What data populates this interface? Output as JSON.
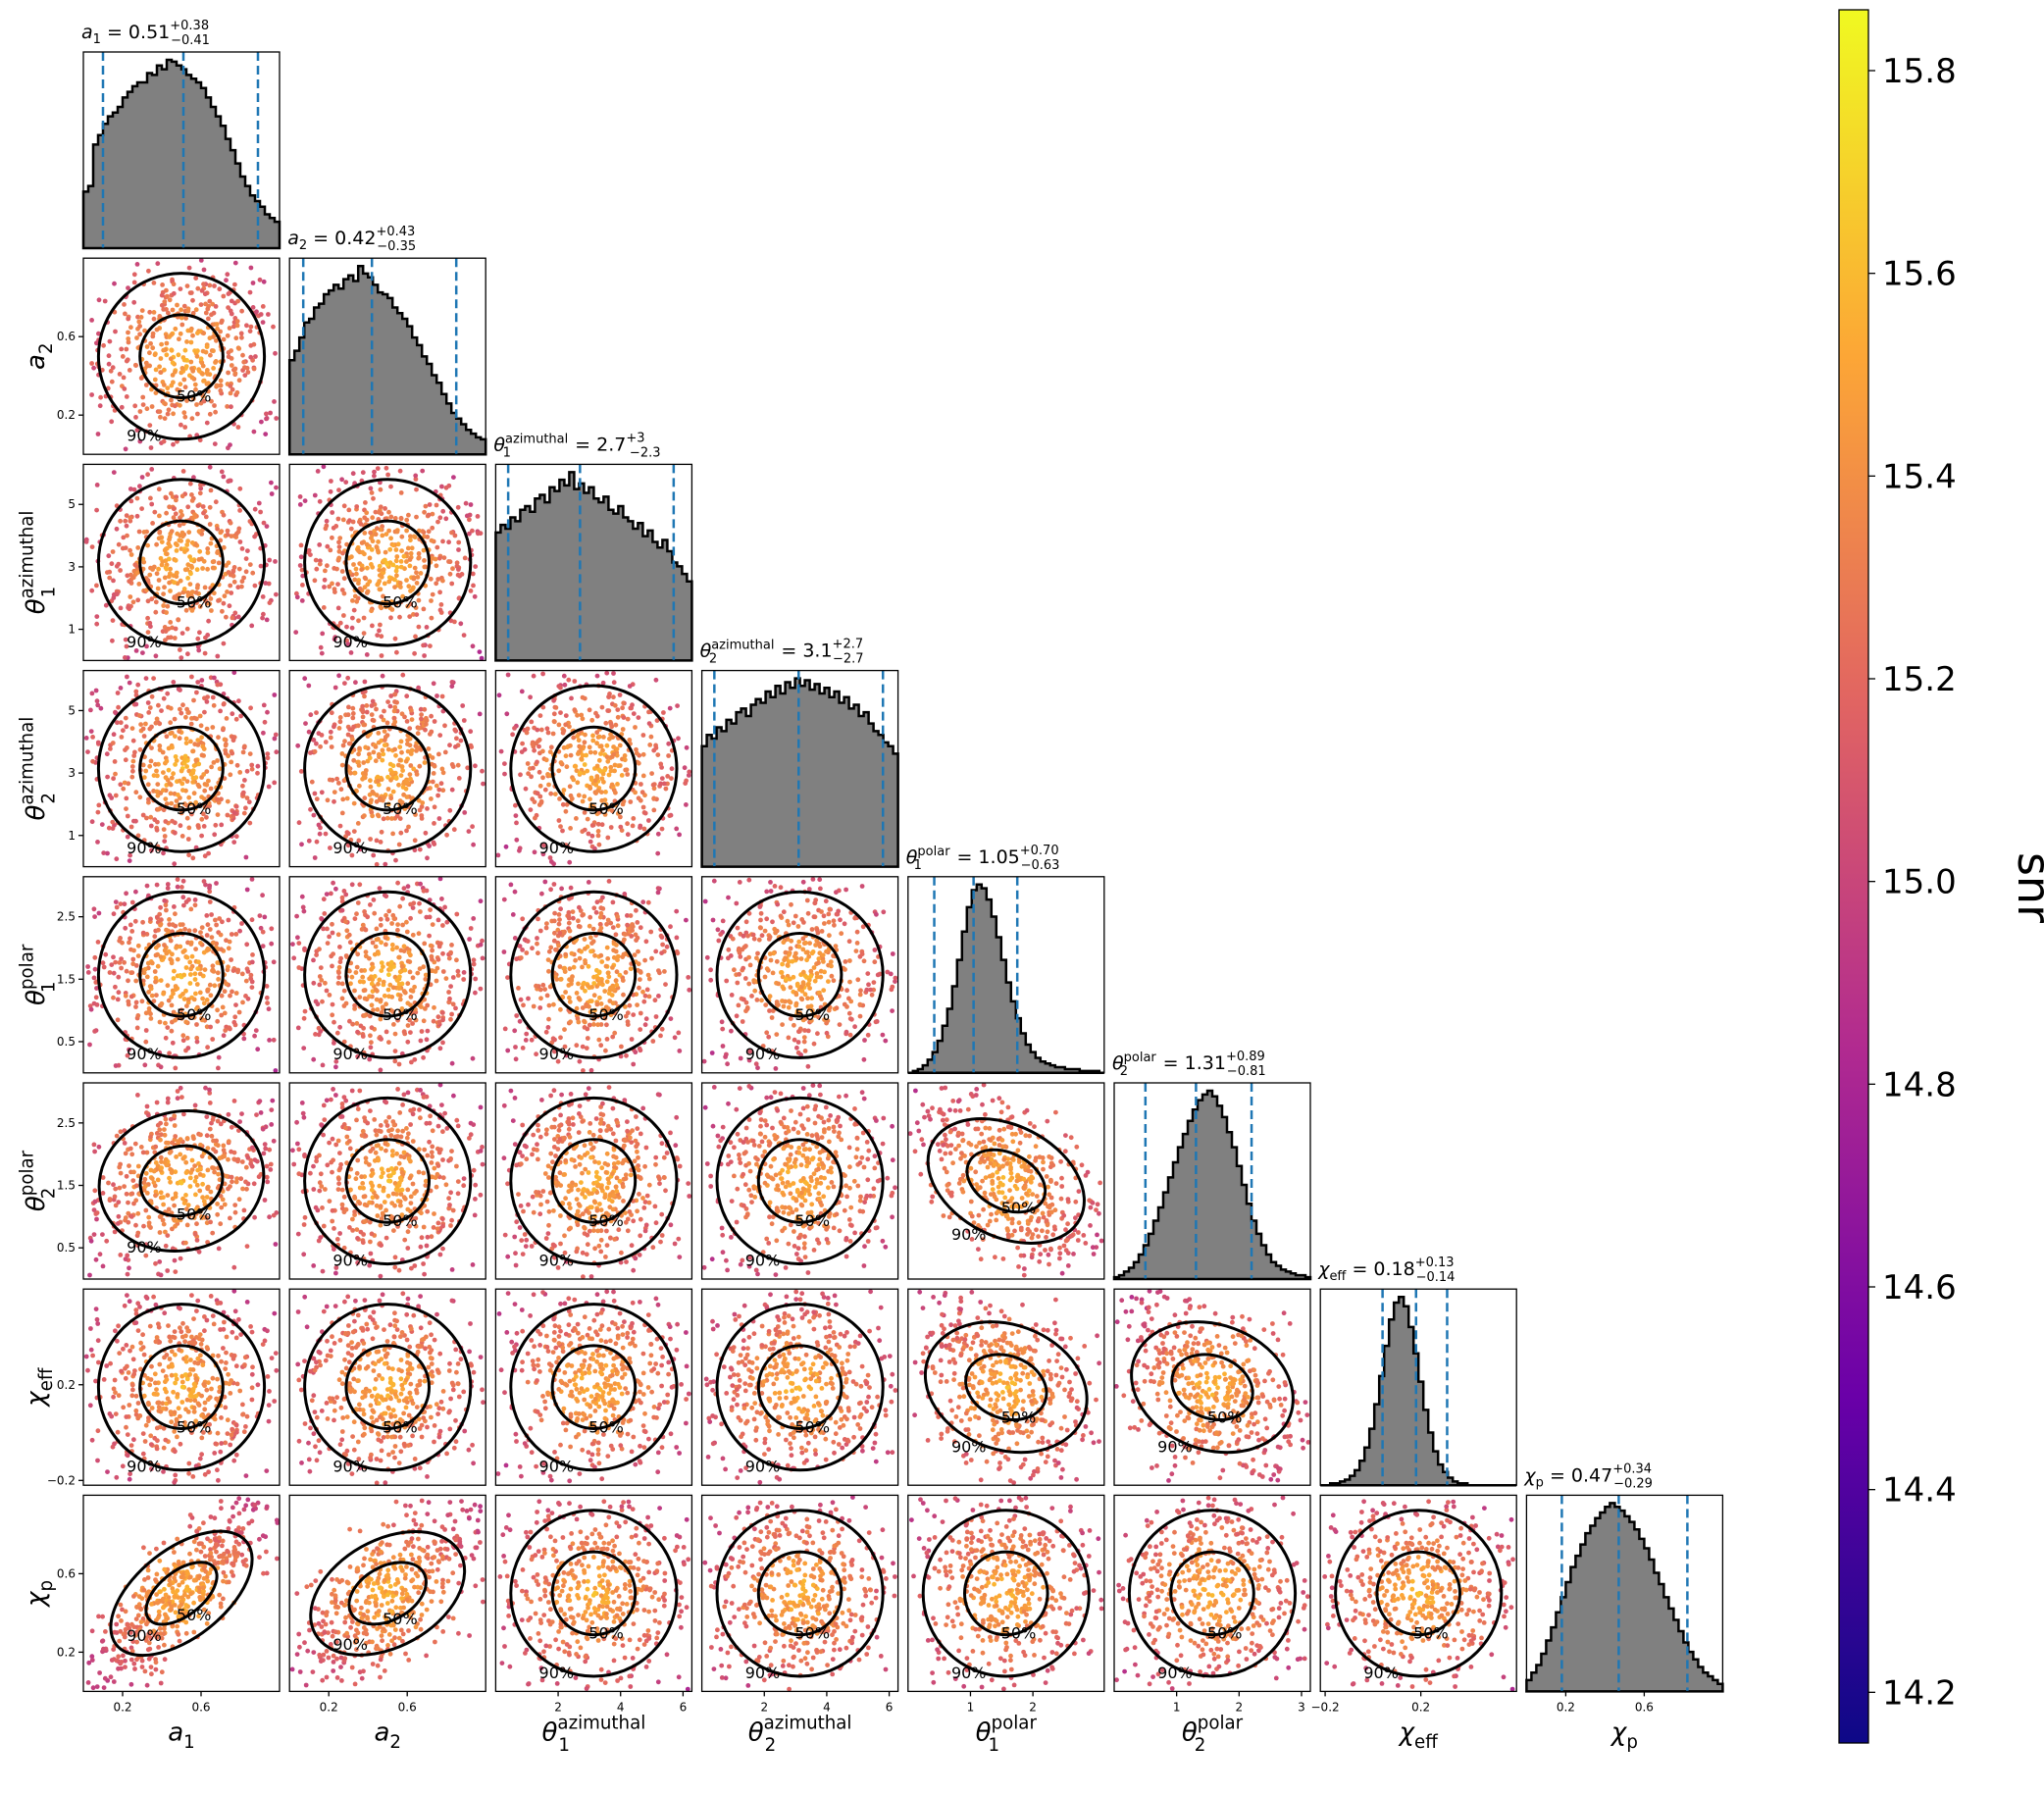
{
  "chart_data": {
    "type": "scatter",
    "subtype": "corner-plot",
    "colorbar": {
      "label": "snr",
      "range": [
        14.15,
        15.86
      ],
      "ticks": [
        "14.2",
        "14.4",
        "14.6",
        "14.8",
        "15.0",
        "15.2",
        "15.4",
        "15.6",
        "15.8"
      ],
      "colormap": [
        "#0d0887",
        "#6a00a8",
        "#b12a90",
        "#e16462",
        "#fca636",
        "#f0f921"
      ]
    },
    "parameters": [
      {
        "id": "a1",
        "label": "a",
        "sub": "1",
        "sup": "",
        "range": [
          0,
          1
        ],
        "ticks": [
          0.2,
          0.6
        ],
        "tick_labels": [
          "0.2",
          "0.6"
        ],
        "title": {
          "eq": " = 0.51",
          "up": "+0.38",
          "lo": "−0.41"
        },
        "quantiles": [
          0.1,
          0.51,
          0.89
        ],
        "hist": [
          0.3,
          0.33,
          0.55,
          0.6,
          0.66,
          0.7,
          0.72,
          0.75,
          0.8,
          0.83,
          0.86,
          0.88,
          0.88,
          0.93,
          0.92,
          0.97,
          0.95,
          1.0,
          0.99,
          0.97,
          0.95,
          0.92,
          0.9,
          0.88,
          0.85,
          0.8,
          0.75,
          0.7,
          0.65,
          0.58,
          0.52,
          0.45,
          0.38,
          0.33,
          0.28,
          0.25,
          0.22,
          0.18,
          0.16,
          0.14
        ]
      },
      {
        "id": "a2",
        "label": "a",
        "sub": "2",
        "sup": "",
        "range": [
          0,
          1
        ],
        "ticks": [
          0.2,
          0.6
        ],
        "tick_labels": [
          "0.2",
          "0.6"
        ],
        "title": {
          "eq": " = 0.42",
          "up": "+0.43",
          "lo": "−0.35"
        },
        "quantiles": [
          0.07,
          0.42,
          0.85
        ],
        "hist": [
          0.5,
          0.55,
          0.62,
          0.7,
          0.72,
          0.78,
          0.8,
          0.85,
          0.87,
          0.9,
          0.88,
          0.93,
          0.95,
          0.92,
          1.0,
          0.96,
          0.94,
          0.9,
          0.86,
          0.85,
          0.83,
          0.78,
          0.75,
          0.72,
          0.68,
          0.62,
          0.58,
          0.52,
          0.48,
          0.42,
          0.38,
          0.32,
          0.27,
          0.22,
          0.19,
          0.16,
          0.13,
          0.11,
          0.09,
          0.08
        ]
      },
      {
        "id": "t1az",
        "label": "θ",
        "sub": "1",
        "sup": "azimuthal",
        "range": [
          0,
          6.283
        ],
        "ticks": [
          1,
          3,
          5
        ],
        "x_ticks": [
          2,
          4,
          6
        ],
        "tick_labels": [
          "1",
          "3",
          "5"
        ],
        "x_tick_labels": [
          "2",
          "4",
          "6"
        ],
        "title": {
          "eq": " = 2.7",
          "up": "+3",
          "lo": "−2.3"
        },
        "quantiles": [
          0.4,
          2.7,
          5.7
        ],
        "hist": [
          0.68,
          0.72,
          0.7,
          0.76,
          0.74,
          0.8,
          0.82,
          0.79,
          0.86,
          0.88,
          0.84,
          0.92,
          0.9,
          0.96,
          0.93,
          1.0,
          0.91,
          0.94,
          0.89,
          0.92,
          0.86,
          0.84,
          0.87,
          0.8,
          0.78,
          0.82,
          0.76,
          0.74,
          0.7,
          0.73,
          0.66,
          0.69,
          0.63,
          0.6,
          0.64,
          0.58,
          0.52,
          0.5,
          0.46,
          0.42
        ]
      },
      {
        "id": "t2az",
        "label": "θ",
        "sub": "2",
        "sup": "azimuthal",
        "range": [
          0,
          6.283
        ],
        "ticks": [
          1,
          3,
          5
        ],
        "x_ticks": [
          2,
          4,
          6
        ],
        "tick_labels": [
          "1",
          "3",
          "5"
        ],
        "x_tick_labels": [
          "2",
          "4",
          "6"
        ],
        "title": {
          "eq": " = 3.1",
          "up": "+2.7",
          "lo": "−2.7"
        },
        "quantiles": [
          0.4,
          3.1,
          5.8
        ],
        "hist": [
          0.64,
          0.7,
          0.68,
          0.74,
          0.72,
          0.78,
          0.76,
          0.82,
          0.84,
          0.8,
          0.86,
          0.89,
          0.87,
          0.93,
          0.9,
          0.96,
          0.92,
          0.98,
          0.95,
          1.0,
          0.96,
          0.99,
          0.94,
          0.97,
          0.92,
          0.95,
          0.9,
          0.93,
          0.87,
          0.9,
          0.84,
          0.86,
          0.8,
          0.82,
          0.76,
          0.72,
          0.7,
          0.66,
          0.64,
          0.6
        ]
      },
      {
        "id": "t1p",
        "label": "θ",
        "sub": "1",
        "sup": "polar",
        "range": [
          0,
          3.1416
        ],
        "ticks": [
          0.5,
          1.5,
          2.5
        ],
        "x_ticks": [
          1,
          2
        ],
        "tick_labels": [
          "0.5",
          "1.5",
          "2.5"
        ],
        "x_tick_labels": [
          "1",
          "2"
        ],
        "title": {
          "eq": " = 1.05",
          "up": "+0.70",
          "lo": "−0.63"
        },
        "quantiles": [
          0.42,
          1.05,
          1.75
        ],
        "hist": [
          0.0,
          0.01,
          0.02,
          0.04,
          0.07,
          0.11,
          0.17,
          0.25,
          0.34,
          0.46,
          0.6,
          0.75,
          0.88,
          0.97,
          1.0,
          0.98,
          0.92,
          0.83,
          0.72,
          0.6,
          0.48,
          0.38,
          0.29,
          0.21,
          0.15,
          0.11,
          0.08,
          0.06,
          0.05,
          0.04,
          0.03,
          0.03,
          0.02,
          0.02,
          0.02,
          0.01,
          0.01,
          0.01,
          0.01,
          0.0
        ]
      },
      {
        "id": "t2p",
        "label": "θ",
        "sub": "2",
        "sup": "polar",
        "range": [
          0,
          3.1416
        ],
        "ticks": [
          0.5,
          1.5,
          2.5
        ],
        "x_ticks": [
          1,
          2,
          3
        ],
        "tick_labels": [
          "0.5",
          "1.5",
          "2.5"
        ],
        "x_tick_labels": [
          "1",
          "2",
          "3"
        ],
        "title": {
          "eq": " = 1.31",
          "up": "+0.89",
          "lo": "−0.81"
        },
        "quantiles": [
          0.5,
          1.31,
          2.2
        ],
        "hist": [
          0.01,
          0.02,
          0.04,
          0.06,
          0.09,
          0.13,
          0.18,
          0.24,
          0.31,
          0.38,
          0.46,
          0.54,
          0.62,
          0.7,
          0.77,
          0.84,
          0.9,
          0.95,
          0.98,
          1.0,
          0.97,
          0.92,
          0.86,
          0.78,
          0.7,
          0.6,
          0.5,
          0.4,
          0.31,
          0.24,
          0.18,
          0.13,
          0.09,
          0.07,
          0.05,
          0.04,
          0.03,
          0.02,
          0.02,
          0.01
        ]
      },
      {
        "id": "chieff",
        "label": "χ",
        "sub": "eff",
        "sup": "",
        "range": [
          -0.22,
          0.6
        ],
        "ticks": [
          -0.2,
          0.2
        ],
        "tick_labels": [
          "−0.2",
          "0.2"
        ],
        "title": {
          "eq": " = 0.18",
          "up": "+0.13",
          "lo": "−0.14"
        },
        "quantiles": [
          0.04,
          0.18,
          0.31
        ],
        "hist": [
          0.0,
          0.0,
          0.01,
          0.01,
          0.02,
          0.03,
          0.05,
          0.08,
          0.13,
          0.2,
          0.3,
          0.43,
          0.58,
          0.74,
          0.88,
          0.97,
          1.0,
          0.95,
          0.84,
          0.7,
          0.55,
          0.4,
          0.28,
          0.18,
          0.11,
          0.07,
          0.04,
          0.02,
          0.01,
          0.01,
          0.0,
          0.0,
          0.0,
          0.0,
          0.0,
          0.0,
          0.0,
          0.0,
          0.0,
          0.0
        ]
      },
      {
        "id": "chip",
        "label": "χ",
        "sub": "p",
        "sup": "",
        "range": [
          0,
          1
        ],
        "ticks": [
          0.2,
          0.6
        ],
        "tick_labels": [
          "0.2",
          "0.6"
        ],
        "title": {
          "eq": " = 0.47",
          "up": "+0.34",
          "lo": "−0.29"
        },
        "quantiles": [
          0.18,
          0.47,
          0.82
        ],
        "hist": [
          0.06,
          0.1,
          0.14,
          0.2,
          0.27,
          0.34,
          0.42,
          0.5,
          0.58,
          0.66,
          0.72,
          0.78,
          0.84,
          0.88,
          0.92,
          0.95,
          0.98,
          1.0,
          0.98,
          0.96,
          0.93,
          0.9,
          0.86,
          0.81,
          0.76,
          0.7,
          0.63,
          0.57,
          0.5,
          0.44,
          0.38,
          0.32,
          0.26,
          0.21,
          0.17,
          0.13,
          0.1,
          0.08,
          0.06,
          0.04
        ]
      }
    ],
    "contour_labels": [
      "50%",
      "90%"
    ]
  }
}
